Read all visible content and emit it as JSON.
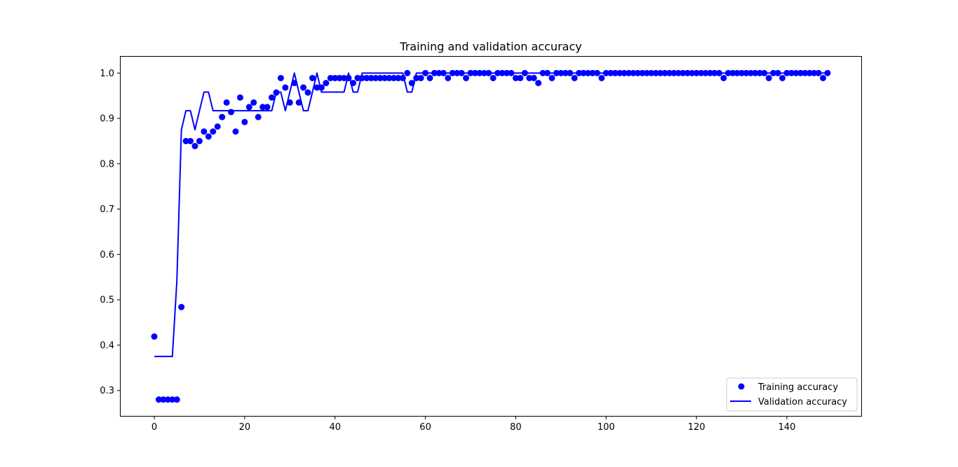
{
  "chart_data": {
    "type": "line",
    "title": "Training and validation accuracy",
    "xlabel": "",
    "ylabel": "",
    "xlim": [
      -7.45,
      156.45
    ],
    "ylim": [
      0.244,
      1.036
    ],
    "xticks": [
      0,
      20,
      40,
      60,
      80,
      100,
      120,
      140
    ],
    "yticks": [
      0.3,
      0.4,
      0.5,
      0.6,
      0.7,
      0.8,
      0.9,
      1.0
    ],
    "ytick_labels": [
      "0.3",
      "0.4",
      "0.5",
      "0.6",
      "0.7",
      "0.8",
      "0.9",
      "1.0"
    ],
    "grid": false,
    "legend_position": "lower right",
    "color": "#0000ff",
    "series": [
      {
        "name": "Training accuracy",
        "style": "points",
        "y": [
          0.419,
          0.28,
          0.28,
          0.28,
          0.28,
          0.28,
          0.484,
          0.85,
          0.85,
          0.839,
          0.85,
          0.871,
          0.86,
          0.871,
          0.882,
          0.903,
          0.935,
          0.914,
          0.871,
          0.946,
          0.892,
          0.925,
          0.935,
          0.903,
          0.925,
          0.925,
          0.946,
          0.957,
          0.989,
          0.968,
          0.935,
          0.978,
          0.935,
          0.968,
          0.957,
          0.989,
          0.968,
          0.968,
          0.978,
          0.989,
          0.989,
          0.989,
          0.989,
          0.989,
          0.978,
          0.989,
          0.989,
          0.989,
          0.989,
          0.989,
          0.989,
          0.989,
          0.989,
          0.989,
          0.989,
          0.989,
          1.0,
          0.978,
          0.989,
          0.989,
          1.0,
          0.989,
          1.0,
          1.0,
          1.0,
          0.989,
          1.0,
          1.0,
          1.0,
          0.989,
          1.0,
          1.0,
          1.0,
          1.0,
          1.0,
          0.989,
          1.0,
          1.0,
          1.0,
          1.0,
          0.989,
          0.989,
          1.0,
          0.989,
          0.989,
          0.978,
          1.0,
          1.0,
          0.989,
          1.0,
          1.0,
          1.0,
          1.0,
          0.989,
          1.0,
          1.0,
          1.0,
          1.0,
          1.0,
          0.989,
          1.0,
          1.0,
          1.0,
          1.0,
          1.0,
          1.0,
          1.0,
          1.0,
          1.0,
          1.0,
          1.0,
          1.0,
          1.0,
          1.0,
          1.0,
          1.0,
          1.0,
          1.0,
          1.0,
          1.0,
          1.0,
          1.0,
          1.0,
          1.0,
          1.0,
          1.0,
          0.989,
          1.0,
          1.0,
          1.0,
          1.0,
          1.0,
          1.0,
          1.0,
          1.0,
          1.0,
          0.989,
          1.0,
          1.0,
          0.989,
          1.0,
          1.0,
          1.0,
          1.0,
          1.0,
          1.0,
          1.0,
          1.0,
          0.989,
          1.0
        ]
      },
      {
        "name": "Validation accuracy",
        "style": "line",
        "y": [
          0.375,
          0.375,
          0.375,
          0.375,
          0.375,
          0.542,
          0.875,
          0.917,
          0.917,
          0.875,
          0.917,
          0.958,
          0.958,
          0.917,
          0.917,
          0.917,
          0.917,
          0.917,
          0.917,
          0.917,
          0.917,
          0.917,
          0.917,
          0.917,
          0.917,
          0.917,
          0.917,
          0.958,
          0.958,
          0.917,
          0.958,
          1.0,
          0.958,
          0.917,
          0.917,
          0.958,
          1.0,
          0.958,
          0.958,
          0.958,
          0.958,
          0.958,
          0.958,
          1.0,
          0.958,
          0.958,
          1.0,
          1.0,
          1.0,
          1.0,
          1.0,
          1.0,
          1.0,
          1.0,
          1.0,
          1.0,
          0.958,
          0.958,
          1.0,
          1.0,
          1.0,
          1.0,
          1.0,
          1.0,
          1.0,
          1.0,
          1.0,
          1.0,
          1.0,
          1.0,
          1.0,
          1.0,
          1.0,
          1.0,
          1.0,
          1.0,
          1.0,
          1.0,
          1.0,
          1.0,
          1.0,
          1.0,
          1.0,
          1.0,
          1.0,
          1.0,
          1.0,
          1.0,
          1.0,
          1.0,
          1.0,
          1.0,
          1.0,
          1.0,
          1.0,
          1.0,
          1.0,
          1.0,
          1.0,
          1.0,
          1.0,
          1.0,
          1.0,
          1.0,
          1.0,
          1.0,
          1.0,
          1.0,
          1.0,
          1.0,
          1.0,
          1.0,
          1.0,
          1.0,
          1.0,
          1.0,
          1.0,
          1.0,
          1.0,
          1.0,
          1.0,
          1.0,
          1.0,
          1.0,
          1.0,
          1.0,
          1.0,
          1.0,
          1.0,
          1.0,
          1.0,
          1.0,
          1.0,
          1.0,
          1.0,
          1.0,
          1.0,
          1.0,
          1.0,
          1.0,
          1.0,
          1.0,
          1.0,
          1.0,
          1.0,
          1.0,
          1.0,
          1.0,
          1.0,
          1.0
        ]
      }
    ]
  }
}
